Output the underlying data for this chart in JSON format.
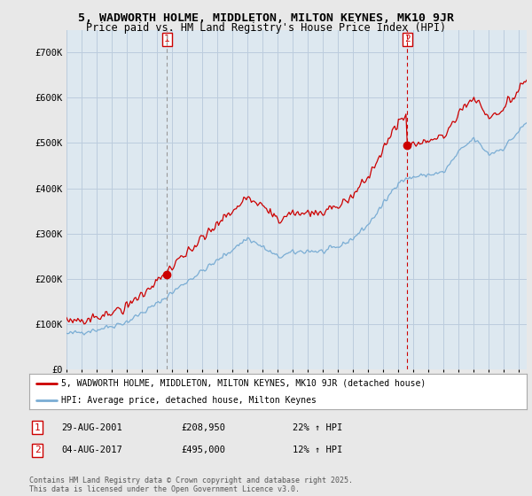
{
  "title": "5, WADWORTH HOLME, MIDDLETON, MILTON KEYNES, MK10 9JR",
  "subtitle": "Price paid vs. HM Land Registry's House Price Index (HPI)",
  "ylim": [
    0,
    750000
  ],
  "yticks": [
    0,
    100000,
    200000,
    300000,
    400000,
    500000,
    600000,
    700000
  ],
  "ytick_labels": [
    "£0",
    "£100K",
    "£200K",
    "£300K",
    "£400K",
    "£500K",
    "£600K",
    "£700K"
  ],
  "legend_line1": "5, WADWORTH HOLME, MIDDLETON, MILTON KEYNES, MK10 9JR (detached house)",
  "legend_line2": "HPI: Average price, detached house, Milton Keynes",
  "annotation1_date": "29-AUG-2001",
  "annotation1_price": "£208,950",
  "annotation1_hpi": "22% ↑ HPI",
  "annotation2_date": "04-AUG-2017",
  "annotation2_price": "£495,000",
  "annotation2_hpi": "12% ↑ HPI",
  "footer": "Contains HM Land Registry data © Crown copyright and database right 2025.\nThis data is licensed under the Open Government Licence v3.0.",
  "line_color_red": "#cc0000",
  "line_color_blue": "#7aadd4",
  "plot_bg_color": "#dde8f0",
  "background_color": "#e8e8e8",
  "grid_color": "#bbccdd",
  "marker1_x": 2001.66,
  "marker1_y": 208950,
  "marker2_x": 2017.59,
  "marker2_y": 495000,
  "price1": 208950,
  "price2": 495000,
  "xlim_start": 1995,
  "xlim_end": 2025.5
}
